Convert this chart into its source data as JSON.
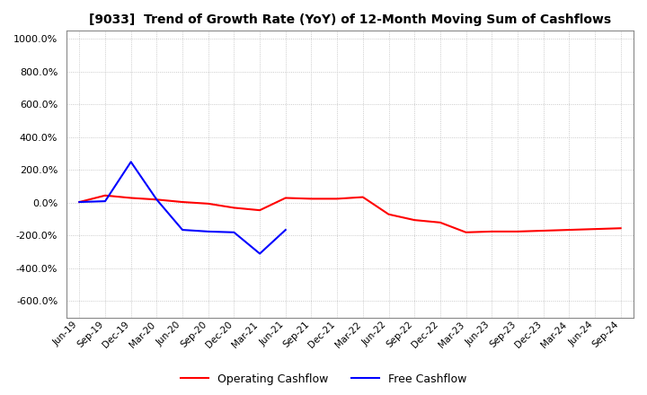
{
  "title": "[9033]  Trend of Growth Rate (YoY) of 12-Month Moving Sum of Cashflows",
  "title_fontsize": 10,
  "ylim": [
    -700,
    1050
  ],
  "yticks": [
    -600,
    -400,
    -200,
    0,
    200,
    400,
    600,
    800,
    1000
  ],
  "background_color": "#ffffff",
  "plot_bg_color": "#ffffff",
  "grid_color": "#bbbbbb",
  "x_labels": [
    "Jun-19",
    "Sep-19",
    "Dec-19",
    "Mar-20",
    "Jun-20",
    "Sep-20",
    "Dec-20",
    "Mar-21",
    "Jun-21",
    "Sep-21",
    "Dec-21",
    "Mar-22",
    "Jun-22",
    "Sep-22",
    "Dec-22",
    "Mar-23",
    "Jun-23",
    "Sep-23",
    "Dec-23",
    "Mar-24",
    "Jun-24",
    "Sep-24"
  ],
  "operating_cashflow": [
    5,
    45,
    30,
    20,
    5,
    -5,
    -30,
    -45,
    30,
    25,
    25,
    35,
    -70,
    -105,
    -120,
    -180,
    -175,
    -175,
    -170,
    -165,
    -160,
    -155
  ],
  "free_cashflow": [
    5,
    10,
    250,
    20,
    -165,
    -175,
    -180,
    -310,
    -165,
    null,
    null,
    null,
    null,
    null,
    null,
    null,
    null,
    null,
    null,
    null,
    null,
    null
  ],
  "op_color": "#ff0000",
  "free_color": "#0000ff",
  "line_width": 1.5
}
